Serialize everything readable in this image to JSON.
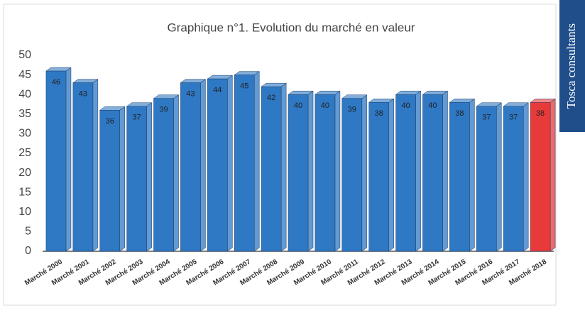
{
  "sidebar": "Tosca consultants",
  "chart_data": {
    "type": "bar3d",
    "title": "Graphique n°1. Evolution du marché en valeur",
    "categories": [
      "Marché 2000",
      "Marché 2001",
      "Marché 2002",
      "Marché 2003",
      "Marché 2004",
      "Marché 2005",
      "Marché 2006",
      "Marché 2007",
      "Marché 2008",
      "Marché 2009",
      "Marché 2010",
      "Marché 2011",
      "Marché 2012",
      "Marché 2013",
      "Marché 2014",
      "Marché 2015",
      "Marché 2016",
      "Marché 2017",
      "Marché 2018"
    ],
    "values": [
      46,
      43,
      36,
      37,
      39,
      43,
      44,
      45,
      42,
      40,
      40,
      39,
      38,
      40,
      40,
      38,
      37,
      37,
      38
    ],
    "colors": [
      "#2f78c4",
      "#2f78c4",
      "#2f78c4",
      "#2f78c4",
      "#2f78c4",
      "#2f78c4",
      "#2f78c4",
      "#2f78c4",
      "#2f78c4",
      "#2f78c4",
      "#2f78c4",
      "#2f78c4",
      "#2f78c4",
      "#2f78c4",
      "#2f78c4",
      "#2f78c4",
      "#2f78c4",
      "#2f78c4",
      "#e83a3a"
    ],
    "ylim": [
      0,
      50
    ],
    "yticks": [
      0,
      5,
      10,
      15,
      20,
      25,
      30,
      35,
      40,
      45,
      50
    ],
    "grid": false
  }
}
